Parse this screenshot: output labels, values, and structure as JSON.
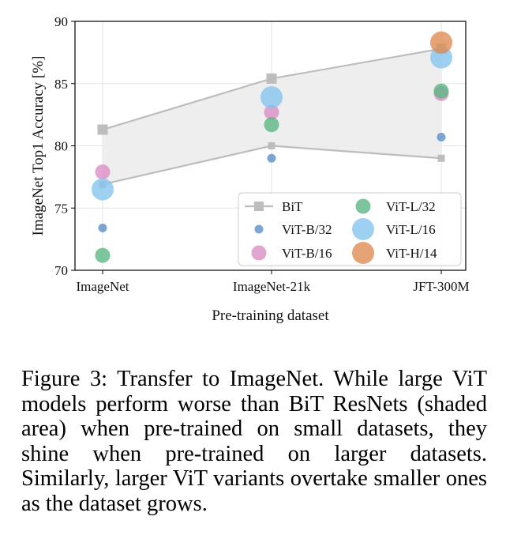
{
  "chart_data": {
    "type": "scatter",
    "xlabel": "Pre-training dataset",
    "ylabel": "ImageNet Top1 Accuracy [%]",
    "categories": [
      "ImageNet",
      "ImageNet-21k",
      "JFT-300M"
    ],
    "ylim": [
      70,
      90
    ],
    "yticks": [
      "70",
      "75",
      "80",
      "85",
      "90"
    ],
    "grid": true,
    "legend_position": "bottom-right",
    "bit_band": {
      "name": "BiT",
      "upper": [
        81.3,
        85.4,
        87.8
      ],
      "lower": [
        76.9,
        80.0,
        79.0
      ],
      "color": "#bdbdbd"
    },
    "series": [
      {
        "name": "ViT-B/32",
        "values": [
          73.4,
          79.0,
          80.7
        ],
        "color": "#5b8fc8",
        "size": 1
      },
      {
        "name": "ViT-B/16",
        "values": [
          77.9,
          82.7,
          84.2
        ],
        "color": "#d98fc4",
        "size": 2
      },
      {
        "name": "ViT-L/32",
        "values": [
          71.2,
          81.7,
          84.4
        ],
        "color": "#5cb885",
        "size": 2
      },
      {
        "name": "ViT-L/16",
        "values": [
          76.5,
          83.9,
          87.1
        ],
        "color": "#86c6ee",
        "size": 3
      },
      {
        "name": "ViT-H/14",
        "values": [
          null,
          null,
          88.3
        ],
        "color": "#e08d54",
        "size": 3
      }
    ],
    "legend": [
      "BiT",
      "ViT-B/32",
      "ViT-B/16",
      "ViT-L/32",
      "ViT-L/16",
      "ViT-H/14"
    ]
  },
  "caption": "Figure 3:  Transfer to ImageNet.  While large ViT models perform worse than BiT ResNets (shaded area) when pre-trained on small datasets, they shine when pre-trained on larger datasets.  Similarly, larger ViT variants overtake smaller ones as the dataset grows."
}
